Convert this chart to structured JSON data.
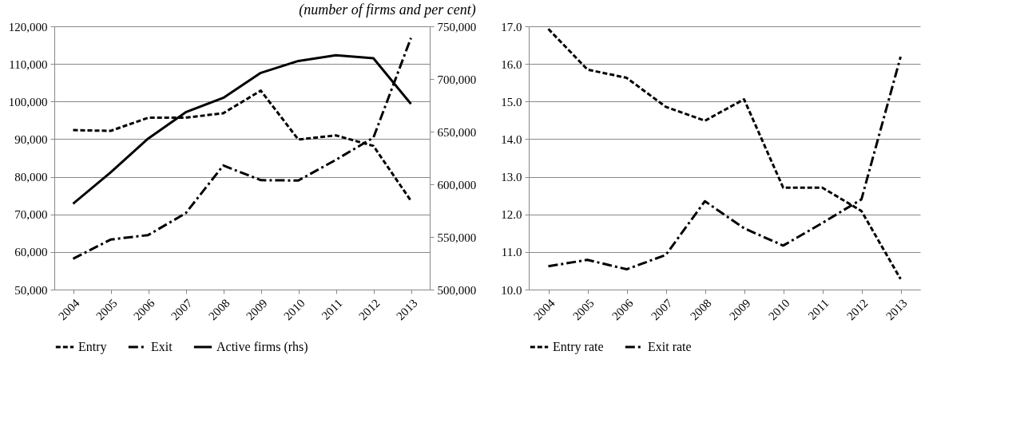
{
  "chart_data": [
    {
      "type": "line",
      "subtitle": "(number of firms and per cent)",
      "categories": [
        "2004",
        "2005",
        "2006",
        "2007",
        "2008",
        "2009",
        "2010",
        "2011",
        "2012",
        "2013"
      ],
      "series": [
        {
          "name": "Entry",
          "color": "#000000",
          "line_style": "dashed",
          "values": [
            92400,
            92200,
            95700,
            95700,
            96900,
            102900,
            89900,
            91000,
            88200,
            73600
          ]
        },
        {
          "name": "Exit",
          "color": "#000000",
          "line_style": "dashdot",
          "values": [
            58200,
            63300,
            64500,
            70300,
            83000,
            79100,
            79000,
            84500,
            90400,
            116900
          ]
        },
        {
          "name": "Active firms (rhs)",
          "color": "#000000",
          "line_style": "solid",
          "axis": "y2",
          "values": [
            581600,
            611300,
            643400,
            668400,
            682100,
            705800,
            717100,
            722600,
            719700,
            676300
          ]
        }
      ],
      "ylim": [
        50000,
        120000
      ],
      "yticks": [
        {
          "value": 50000,
          "label": "50,000"
        },
        {
          "value": 60000,
          "label": "60,000"
        },
        {
          "value": 70000,
          "label": "70,000"
        },
        {
          "value": 80000,
          "label": "80,000"
        },
        {
          "value": 90000,
          "label": "90,000"
        },
        {
          "value": 100000,
          "label": "100,000"
        },
        {
          "value": 110000,
          "label": "110,000"
        },
        {
          "value": 120000,
          "label": "120,000"
        }
      ],
      "y2lim": [
        500000,
        750000
      ],
      "y2ticks": [
        {
          "value": 500000,
          "label": "500,000"
        },
        {
          "value": 550000,
          "label": "550,000"
        },
        {
          "value": 600000,
          "label": "600,000"
        },
        {
          "value": 650000,
          "label": "650,000"
        },
        {
          "value": 700000,
          "label": "700,000"
        },
        {
          "value": 750000,
          "label": "750,000"
        }
      ],
      "grid": "y",
      "legend": "bottom"
    },
    {
      "type": "line",
      "categories": [
        "2004",
        "2005",
        "2006",
        "2007",
        "2008",
        "2009",
        "2010",
        "2011",
        "2012",
        "2013"
      ],
      "series": [
        {
          "name": "Entry rate",
          "color": "#000000",
          "line_style": "dashed",
          "values": [
            16.93,
            15.85,
            15.63,
            14.86,
            14.49,
            15.06,
            12.71,
            12.71,
            12.09,
            10.28
          ]
        },
        {
          "name": "Exit rate",
          "color": "#000000",
          "line_style": "dashdot",
          "values": [
            10.62,
            10.79,
            10.54,
            10.92,
            12.35,
            11.63,
            11.17,
            11.77,
            12.4,
            16.19
          ]
        }
      ],
      "ylim": [
        10,
        17
      ],
      "yticks": [
        {
          "value": 10,
          "label": "10.0"
        },
        {
          "value": 11,
          "label": "11.0"
        },
        {
          "value": 12,
          "label": "12.0"
        },
        {
          "value": 13,
          "label": "13.0"
        },
        {
          "value": 14,
          "label": "14.0"
        },
        {
          "value": 15,
          "label": "15.0"
        },
        {
          "value": 16,
          "label": "16.0"
        },
        {
          "value": 17,
          "label": "17.0"
        }
      ],
      "grid": "y",
      "legend": "bottom"
    }
  ]
}
